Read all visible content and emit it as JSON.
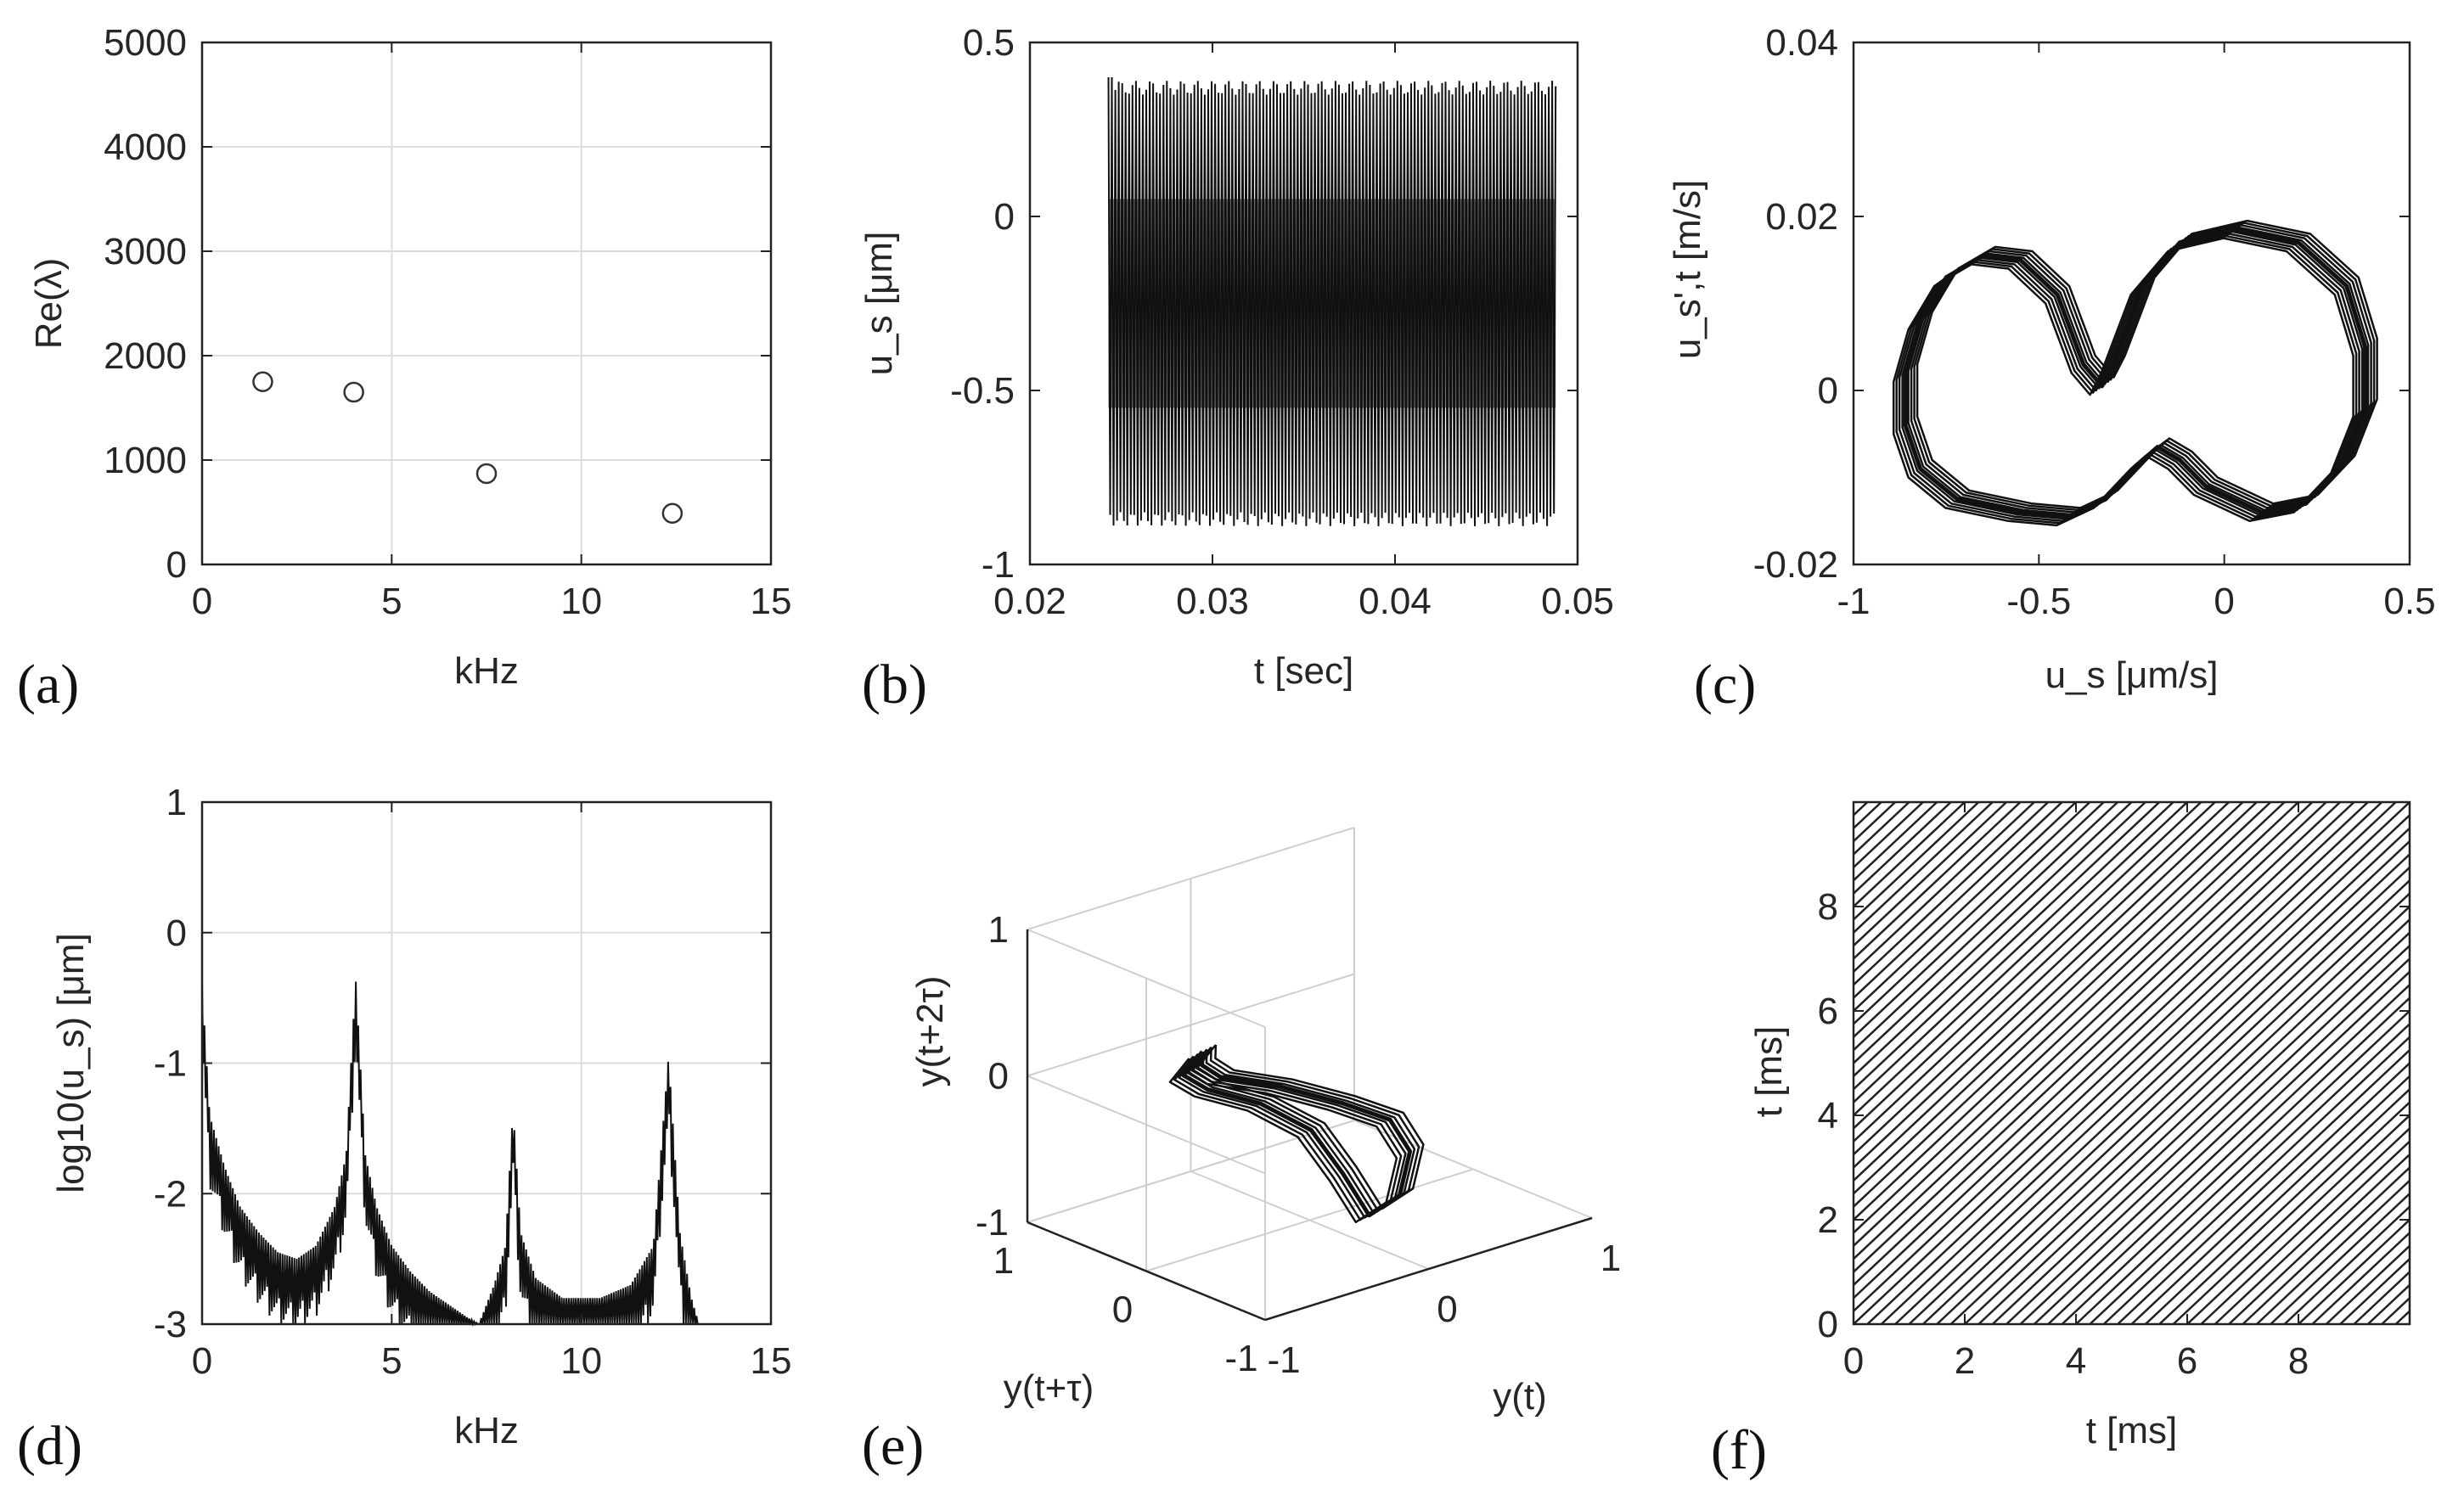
{
  "chart_data": [
    {
      "panel": "(a)",
      "type": "scatter",
      "xlabel": "kHz",
      "ylabel": "Re(λ)",
      "xlim": [
        0,
        15
      ],
      "ylim": [
        0,
        5000
      ],
      "xticks": [
        "0",
        "5",
        "10",
        "15"
      ],
      "yticks": [
        "0",
        "1000",
        "2000",
        "3000",
        "4000",
        "5000"
      ],
      "grid": true,
      "points": [
        {
          "x": 1.6,
          "y": 1750
        },
        {
          "x": 4.0,
          "y": 1650
        },
        {
          "x": 7.5,
          "y": 870
        },
        {
          "x": 12.4,
          "y": 490
        }
      ]
    },
    {
      "panel": "(b)",
      "type": "line",
      "xlabel": "t [sec]",
      "ylabel": "u_s [μm]",
      "xlim": [
        0.02,
        0.05
      ],
      "ylim": [
        -1,
        0.5
      ],
      "xticks": [
        "0.02",
        "0.03",
        "0.04",
        "0.05"
      ],
      "yticks": [
        "-1",
        "-0.5",
        "0",
        "0.5"
      ],
      "grid": false,
      "signal": {
        "t_start": 0.0243,
        "t_end": 0.0488,
        "max": 0.37,
        "min": -0.87,
        "initial_peak": 0.4
      }
    },
    {
      "panel": "(c)",
      "type": "line",
      "xlabel": "u_s [μm/s]",
      "ylabel": "u_s',t [m/s]",
      "xlim": [
        -1,
        0.5
      ],
      "ylim": [
        -0.02,
        0.04
      ],
      "xticks": [
        "-1",
        "-0.5",
        "0",
        "0.5"
      ],
      "yticks": [
        "-0.02",
        "0",
        "0.02",
        "0.04"
      ],
      "grid": false,
      "orbit": [
        [
          -0.38,
          0.003
        ],
        [
          -0.45,
          0.011
        ],
        [
          -0.55,
          0.015
        ],
        [
          -0.65,
          0.0155
        ],
        [
          -0.75,
          0.013
        ],
        [
          -0.82,
          0.008
        ],
        [
          -0.86,
          0.002
        ],
        [
          -0.86,
          -0.004
        ],
        [
          -0.82,
          -0.009
        ],
        [
          -0.72,
          -0.0125
        ],
        [
          -0.55,
          -0.014
        ],
        [
          -0.42,
          -0.0145
        ],
        [
          -0.32,
          -0.0125
        ],
        [
          -0.22,
          -0.008
        ],
        [
          -0.18,
          -0.0065
        ],
        [
          -0.12,
          -0.008
        ],
        [
          -0.05,
          -0.011
        ],
        [
          0.1,
          -0.014
        ],
        [
          0.22,
          -0.013
        ],
        [
          0.32,
          -0.0085
        ],
        [
          0.38,
          -0.002
        ],
        [
          0.38,
          0.005
        ],
        [
          0.33,
          0.012
        ],
        [
          0.2,
          0.017
        ],
        [
          0.03,
          0.0185
        ],
        [
          -0.12,
          0.017
        ],
        [
          -0.22,
          0.012
        ],
        [
          -0.3,
          0.003
        ],
        [
          -0.33,
          0.0005
        ],
        [
          -0.38,
          0.003
        ]
      ]
    },
    {
      "panel": "(d)",
      "type": "line",
      "xlabel": "kHz",
      "ylabel": "log10(u_s) [μm]",
      "xlim": [
        0,
        15
      ],
      "ylim": [
        -3,
        1
      ],
      "xticks": [
        "0",
        "5",
        "10",
        "15"
      ],
      "yticks": [
        "-3",
        "-2",
        "-1",
        "0",
        "1"
      ],
      "grid": true,
      "spectrum": [
        [
          0.0,
          -0.4
        ],
        [
          0.2,
          -1.4
        ],
        [
          0.6,
          -1.8
        ],
        [
          1.0,
          -2.1
        ],
        [
          1.5,
          -2.3
        ],
        [
          2.0,
          -2.45
        ],
        [
          2.5,
          -2.5
        ],
        [
          3.0,
          -2.4
        ],
        [
          3.5,
          -2.1
        ],
        [
          3.8,
          -1.7
        ],
        [
          4.05,
          -0.35
        ],
        [
          4.3,
          -1.7
        ],
        [
          4.6,
          -2.1
        ],
        [
          5.0,
          -2.4
        ],
        [
          5.5,
          -2.6
        ],
        [
          6.0,
          -2.75
        ],
        [
          6.5,
          -2.85
        ],
        [
          7.0,
          -2.95
        ],
        [
          7.3,
          -3.0
        ],
        [
          7.7,
          -2.7
        ],
        [
          8.0,
          -2.4
        ],
        [
          8.2,
          -1.35
        ],
        [
          8.4,
          -2.3
        ],
        [
          8.8,
          -2.65
        ],
        [
          9.5,
          -2.8
        ],
        [
          10.5,
          -2.8
        ],
        [
          11.3,
          -2.7
        ],
        [
          11.9,
          -2.4
        ],
        [
          12.3,
          -0.95
        ],
        [
          12.6,
          -2.3
        ],
        [
          12.9,
          -2.8
        ],
        [
          13.1,
          -3.0
        ]
      ]
    },
    {
      "panel": "(e)",
      "type": "line",
      "view": "3d",
      "xlabel": "y(t)",
      "ylabel": "y(t+τ)",
      "zlabel": "y(t+2τ)",
      "xlim": [
        -1,
        1
      ],
      "ylim": [
        -1,
        1
      ],
      "zlim": [
        -1,
        1
      ],
      "xticks": [
        "-1",
        "0",
        "1"
      ],
      "yticks": [
        "-1",
        "0",
        "1"
      ],
      "zticks": [
        "-1",
        "0",
        "1"
      ],
      "grid": true
    },
    {
      "panel": "(f)",
      "type": "line",
      "xlabel": "t [ms]",
      "ylabel": "t [ms]",
      "xlim": [
        0,
        10
      ],
      "ylim": [
        0,
        10
      ],
      "xticks": [
        "0",
        "2",
        "4",
        "6",
        "8"
      ],
      "yticks": [
        "0",
        "2",
        "4",
        "6",
        "8"
      ],
      "grid": false,
      "diagonal_period_ms": 0.25
    }
  ]
}
